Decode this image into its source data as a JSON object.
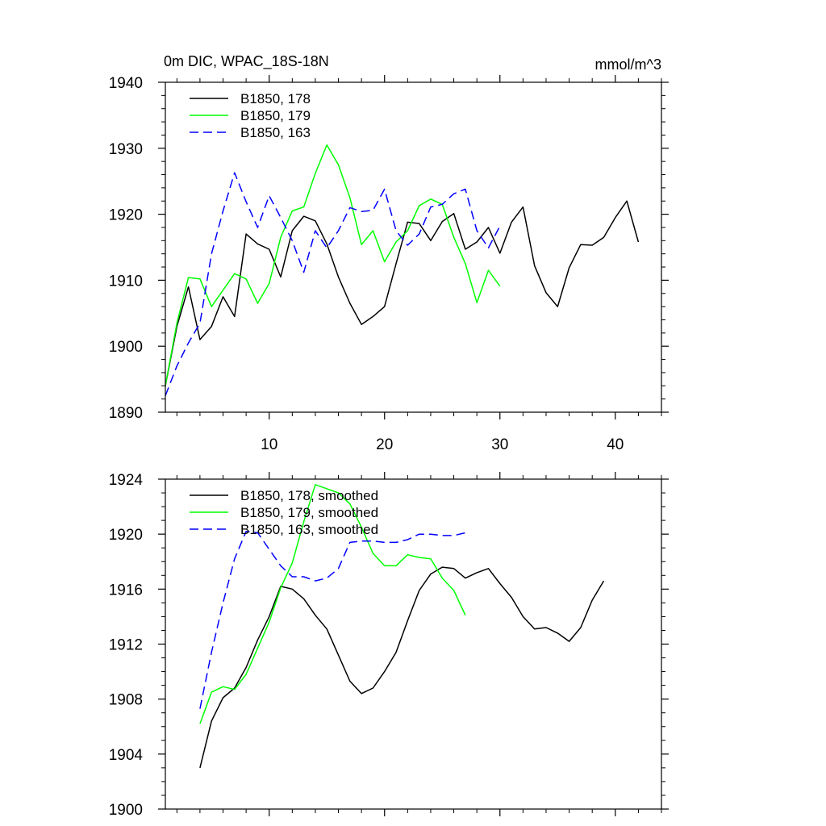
{
  "chart_data": [
    {
      "type": "line",
      "title": "0m DIC, WPAC_18S-18N",
      "units": "mmol/m^3",
      "xlabel": "",
      "ylabel": "",
      "xlim": [
        1,
        44
      ],
      "ylim": [
        1890,
        1940
      ],
      "xticks": [
        10,
        20,
        30,
        40
      ],
      "xtick_labels": [
        "10",
        "20",
        "30",
        "40"
      ],
      "yticks": [
        1890,
        1900,
        1910,
        1920,
        1930,
        1940
      ],
      "ytick_labels": [
        "1890",
        "1900",
        "1910",
        "1920",
        "1930",
        "1940"
      ],
      "legend_position": "top-left",
      "series": [
        {
          "name": "B1850, 178",
          "color": "#000000",
          "dash": "solid",
          "x": [
            1,
            2,
            3,
            4,
            5,
            6,
            7,
            8,
            9,
            10,
            11,
            12,
            13,
            14,
            15,
            16,
            17,
            18,
            19,
            20,
            21,
            22,
            23,
            24,
            25,
            26,
            27,
            28,
            29,
            30,
            31,
            32,
            33,
            34,
            35,
            36,
            37,
            38,
            39,
            40,
            41,
            42
          ],
          "values": [
            1894,
            1903,
            1909,
            1901,
            1903,
            1907.5,
            1904.5,
            1917,
            1915.5,
            1914.7,
            1910.5,
            1917.5,
            1919.7,
            1919,
            1915.5,
            1910.5,
            1906.5,
            1903.3,
            1904.5,
            1906,
            1912.5,
            1918.8,
            1918.6,
            1916,
            1918.9,
            1920.1,
            1914.7,
            1915.8,
            1918,
            1914.1,
            1918.8,
            1921.1,
            1912.2,
            1908.1,
            1906,
            1911.9,
            1915.4,
            1915.3,
            1916.5,
            1919.5,
            1922,
            1915.8
          ]
        },
        {
          "name": "B1850, 179",
          "color": "#00ff00",
          "dash": "solid",
          "x": [
            1,
            2,
            3,
            4,
            5,
            6,
            7,
            8,
            9,
            10,
            11,
            12,
            13,
            14,
            15,
            16,
            17,
            18,
            19,
            20,
            21,
            22,
            23,
            24,
            25,
            26,
            27,
            28,
            29,
            30
          ],
          "values": [
            1894,
            1903.5,
            1910.4,
            1910.2,
            1906,
            1908.5,
            1911,
            1910.2,
            1906.5,
            1909.5,
            1916.5,
            1920.5,
            1921.1,
            1926.2,
            1930.5,
            1927.5,
            1922.5,
            1915.4,
            1917.5,
            1912.8,
            1915.8,
            1917.5,
            1921.3,
            1922.3,
            1921.5,
            1916.5,
            1912.5,
            1906.6,
            1911.5,
            1909.1
          ]
        },
        {
          "name": "B1850, 163",
          "color": "#0000ff",
          "dash": "dashed",
          "x": [
            1,
            2,
            3,
            4,
            5,
            6,
            7,
            8,
            9,
            10,
            11,
            12,
            13,
            14,
            15,
            16,
            17,
            18,
            19,
            20,
            21,
            22,
            23,
            24,
            25,
            26,
            27,
            28,
            29,
            30
          ],
          "values": [
            1892.5,
            1897,
            1900.5,
            1903.5,
            1914,
            1920.5,
            1926.3,
            1921.9,
            1918,
            1922.8,
            1919.5,
            1916,
            1911.2,
            1917.5,
            1914.9,
            1917.5,
            1921,
            1920.4,
            1920.6,
            1923.8,
            1917.5,
            1915.3,
            1917,
            1921.1,
            1921.5,
            1923.1,
            1923.8,
            1917.5,
            1914.9,
            1918.2
          ]
        }
      ]
    },
    {
      "type": "line",
      "title": "",
      "xlabel": "",
      "ylabel": "",
      "xlim": [
        1,
        44
      ],
      "ylim": [
        1900,
        1924
      ],
      "xticks": [
        10,
        20,
        30,
        40
      ],
      "yticks": [
        1900,
        1904,
        1908,
        1912,
        1916,
        1920,
        1924
      ],
      "ytick_labels": [
        "1900",
        "1904",
        "1908",
        "1912",
        "1916",
        "1920",
        "1924"
      ],
      "legend_position": "top-left",
      "series": [
        {
          "name": "B1850, 178, smoothed",
          "color": "#000000",
          "dash": "solid",
          "x": [
            4,
            5,
            6,
            7,
            8,
            9,
            10,
            11,
            12,
            13,
            14,
            15,
            16,
            17,
            18,
            19,
            20,
            21,
            22,
            23,
            24,
            25,
            26,
            27,
            28,
            29,
            30,
            31,
            32,
            33,
            34,
            35,
            36,
            37,
            38,
            39
          ],
          "values": [
            1903,
            1906.4,
            1908.1,
            1908.8,
            1910.3,
            1912.3,
            1914,
            1916.2,
            1916,
            1915.3,
            1914.1,
            1913.1,
            1911.2,
            1909.3,
            1908.4,
            1908.8,
            1910,
            1911.4,
            1913.7,
            1915.9,
            1917.1,
            1917.6,
            1917.5,
            1916.8,
            1917.2,
            1917.5,
            1916.4,
            1915.4,
            1914,
            1913.1,
            1913.2,
            1912.8,
            1912.2,
            1913.2,
            1915.2,
            1916.6
          ]
        },
        {
          "name": "B1850, 179, smoothed",
          "color": "#00ff00",
          "dash": "solid",
          "x": [
            4,
            5,
            6,
            7,
            8,
            9,
            10,
            11,
            12,
            13,
            14,
            15,
            16,
            17,
            18,
            19,
            20,
            21,
            22,
            23,
            24,
            25,
            26,
            27
          ],
          "values": [
            1906.2,
            1908.5,
            1908.9,
            1908.7,
            1909.8,
            1911.7,
            1913.6,
            1916.1,
            1917.9,
            1920.9,
            1923.6,
            1923.3,
            1923,
            1922.2,
            1920.5,
            1918.6,
            1917.7,
            1917.7,
            1918.5,
            1918.3,
            1918.2,
            1916.8,
            1915.9,
            1914.1
          ]
        },
        {
          "name": "B1850, 163, smoothed",
          "color": "#0000ff",
          "dash": "dashed",
          "x": [
            4,
            5,
            6,
            7,
            8,
            9,
            10,
            11,
            12,
            13,
            14,
            15,
            16,
            17,
            18,
            19,
            20,
            21,
            22,
            23,
            24,
            25,
            26,
            27
          ],
          "values": [
            1907.3,
            1911.4,
            1915,
            1918.2,
            1920.2,
            1920.1,
            1918.9,
            1917.7,
            1916.9,
            1916.9,
            1916.6,
            1916.8,
            1917.5,
            1919.4,
            1919.5,
            1919.5,
            1919.4,
            1919.4,
            1919.6,
            1920,
            1920,
            1919.9,
            1919.9,
            1920.1
          ]
        }
      ]
    }
  ]
}
